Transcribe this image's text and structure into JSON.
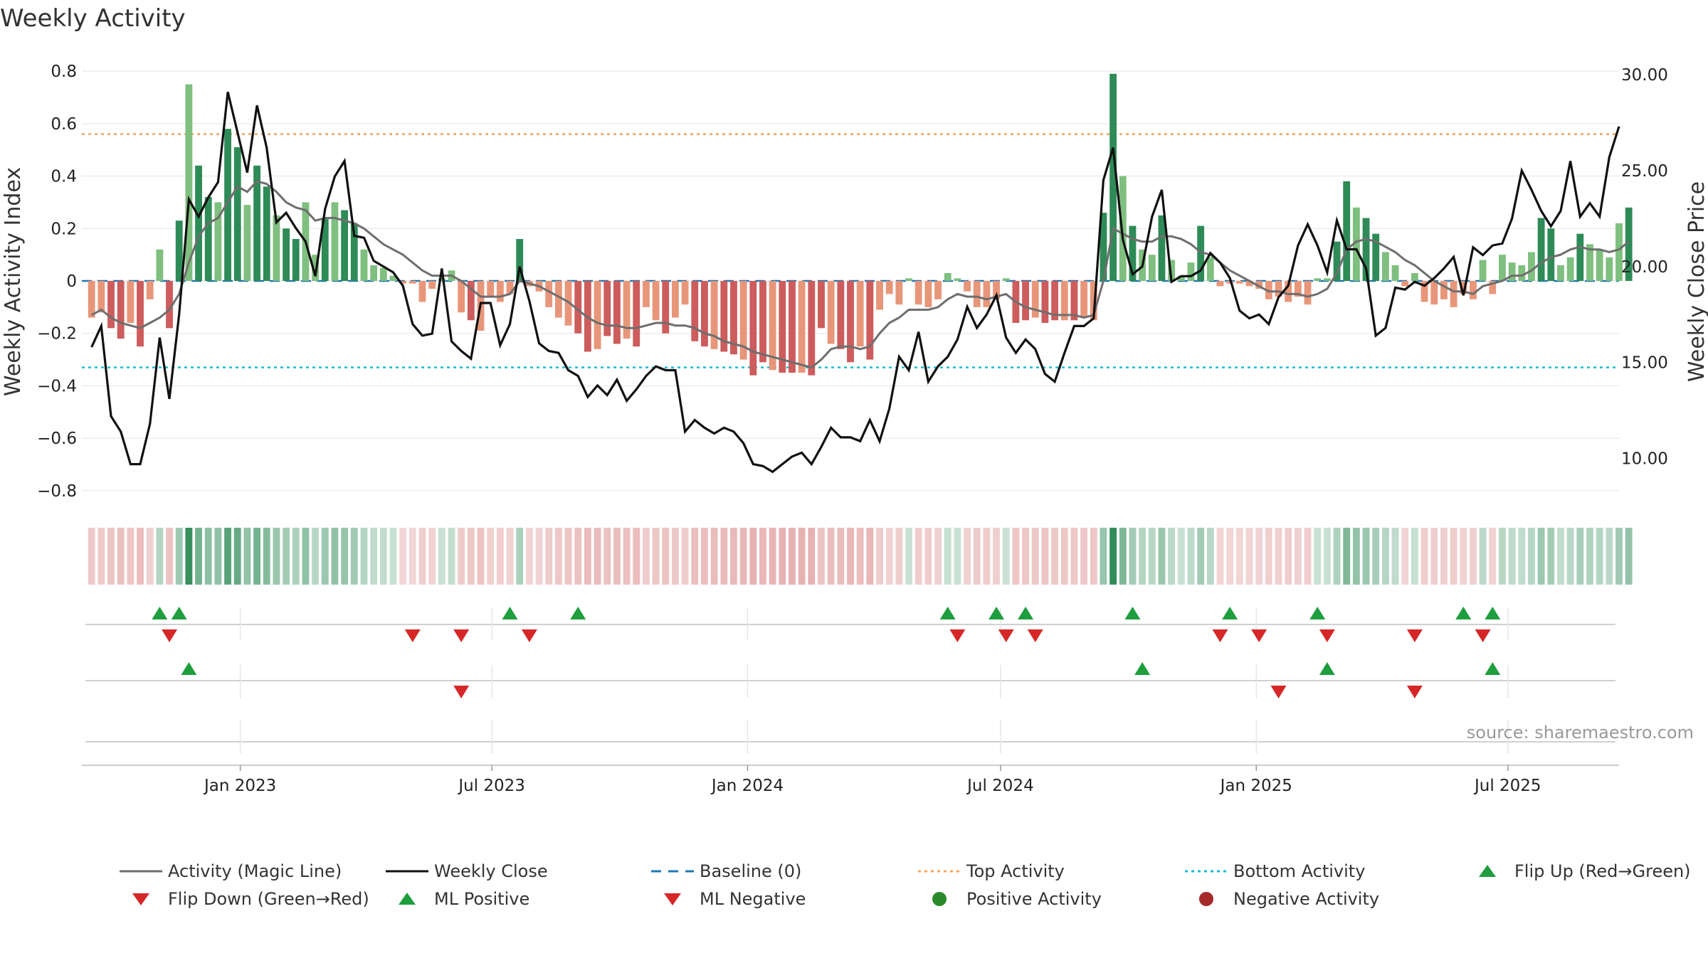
{
  "title": "Weekly Activity",
  "source": "source: sharemaestro.com",
  "colors": {
    "pos_strong": "#2e8b57",
    "pos_light": "#7fbf7f",
    "neg_strong": "#cd5c5c",
    "neg_light": "#e8967a",
    "magic_line": "#6e6e6e",
    "close_line": "#111111",
    "baseline": "#1f77b4",
    "top_line": "#f4a460",
    "bottom_line": "#17becf",
    "flip_up": "#1e9e3e",
    "flip_down": "#d62728"
  },
  "chart_data": {
    "type": "bar",
    "ylabel": "Weekly Activity Index",
    "y2label": "Weekly Close Price",
    "ylim": [
      -0.86,
      0.86
    ],
    "y2lim": [
      7.5,
      31.0
    ],
    "yticks": [
      -0.8,
      -0.6,
      -0.4,
      -0.2,
      0,
      0.2,
      0.4,
      0.6,
      0.8
    ],
    "yticklabels": [
      "−0.8",
      "−0.6",
      "−0.4",
      "−0.2",
      "0",
      "0.2",
      "0.4",
      "0.6",
      "0.8"
    ],
    "y2ticks": [
      10,
      15,
      20,
      25,
      30
    ],
    "y2ticklabels": [
      "10.00",
      "15.00",
      "20.00",
      "25.00",
      "30.00"
    ],
    "xlim": [
      "2022-09-09",
      "2025-09-19"
    ],
    "xticks": [
      "2023-01-01",
      "2023-07-01",
      "2024-01-01",
      "2024-07-01",
      "2025-01-01",
      "2025-07-01"
    ],
    "xticklabels": [
      "Jan 2023",
      "Jul 2023",
      "Jan 2024",
      "Jul 2024",
      "Jan 2025",
      "Jul 2025"
    ],
    "start_week": "2022-09-16",
    "activity": [
      -0.14,
      -0.12,
      -0.18,
      -0.22,
      -0.16,
      -0.25,
      -0.07,
      0.12,
      -0.18,
      0.23,
      0.75,
      0.44,
      0.32,
      0.3,
      0.58,
      0.51,
      0.29,
      0.44,
      0.36,
      0.25,
      0.2,
      0.16,
      0.3,
      0.1,
      0.24,
      0.3,
      0.27,
      0.22,
      0.12,
      0.06,
      0.05,
      0.02,
      -0.01,
      -0.01,
      -0.08,
      -0.03,
      0.01,
      0.04,
      -0.12,
      -0.15,
      -0.19,
      -0.06,
      -0.08,
      -0.05,
      0.16,
      -0.02,
      -0.04,
      -0.1,
      -0.14,
      -0.17,
      -0.2,
      -0.27,
      -0.26,
      -0.21,
      -0.24,
      -0.22,
      -0.25,
      -0.1,
      -0.15,
      -0.2,
      -0.14,
      -0.09,
      -0.23,
      -0.25,
      -0.26,
      -0.27,
      -0.28,
      -0.3,
      -0.36,
      -0.31,
      -0.34,
      -0.35,
      -0.35,
      -0.35,
      -0.36,
      -0.18,
      -0.24,
      -0.26,
      -0.31,
      -0.25,
      -0.3,
      -0.11,
      -0.05,
      -0.09,
      0.01,
      -0.09,
      -0.1,
      -0.07,
      0.03,
      0.01,
      -0.04,
      -0.1,
      -0.1,
      -0.07,
      0.01,
      -0.16,
      -0.15,
      -0.14,
      -0.16,
      -0.15,
      -0.15,
      -0.15,
      -0.14,
      -0.15,
      0.26,
      0.79,
      0.4,
      0.21,
      0.12,
      0.1,
      0.25,
      0.08,
      0.02,
      0.07,
      0.21,
      0.09,
      -0.02,
      -0.01,
      -0.01,
      -0.02,
      -0.03,
      -0.07,
      -0.06,
      -0.08,
      -0.06,
      -0.09,
      0.01,
      0.01,
      0.15,
      0.38,
      0.28,
      0.24,
      0.18,
      0.11,
      0.06,
      -0.02,
      0.03,
      -0.08,
      -0.09,
      -0.07,
      -0.1,
      -0.05,
      -0.07,
      0.08,
      -0.05,
      0.1,
      0.07,
      0.06,
      0.11,
      0.24,
      0.2,
      0.06,
      0.09,
      0.18,
      0.14,
      0.12,
      0.09,
      0.22,
      0.28
    ],
    "magic_line": [
      -0.13,
      -0.11,
      -0.14,
      -0.16,
      -0.17,
      -0.18,
      -0.16,
      -0.14,
      -0.11,
      -0.05,
      0.07,
      0.17,
      0.22,
      0.24,
      0.3,
      0.36,
      0.34,
      0.38,
      0.37,
      0.34,
      0.3,
      0.28,
      0.27,
      0.23,
      0.24,
      0.24,
      0.23,
      0.22,
      0.2,
      0.17,
      0.14,
      0.12,
      0.1,
      0.07,
      0.04,
      0.02,
      0.02,
      0.02,
      0.0,
      -0.03,
      -0.06,
      -0.06,
      -0.06,
      -0.05,
      0.0,
      -0.01,
      -0.02,
      -0.04,
      -0.06,
      -0.08,
      -0.11,
      -0.14,
      -0.16,
      -0.17,
      -0.17,
      -0.18,
      -0.18,
      -0.17,
      -0.16,
      -0.16,
      -0.17,
      -0.17,
      -0.18,
      -0.2,
      -0.21,
      -0.23,
      -0.24,
      -0.25,
      -0.27,
      -0.28,
      -0.29,
      -0.3,
      -0.31,
      -0.32,
      -0.33,
      -0.3,
      -0.26,
      -0.25,
      -0.25,
      -0.26,
      -0.25,
      -0.2,
      -0.16,
      -0.14,
      -0.11,
      -0.11,
      -0.11,
      -0.1,
      -0.07,
      -0.05,
      -0.06,
      -0.06,
      -0.07,
      -0.06,
      -0.05,
      -0.08,
      -0.1,
      -0.11,
      -0.12,
      -0.13,
      -0.13,
      -0.13,
      -0.14,
      -0.13,
      0.0,
      0.2,
      0.18,
      0.16,
      0.15,
      0.15,
      0.17,
      0.17,
      0.16,
      0.14,
      0.11,
      0.1,
      0.07,
      0.04,
      0.02,
      0.0,
      -0.02,
      -0.04,
      -0.04,
      -0.05,
      -0.05,
      -0.06,
      -0.05,
      -0.03,
      0.03,
      0.12,
      0.15,
      0.16,
      0.15,
      0.13,
      0.11,
      0.08,
      0.06,
      0.03,
      0.0,
      -0.02,
      -0.04,
      -0.04,
      -0.05,
      -0.02,
      -0.01,
      0.0,
      0.02,
      0.02,
      0.04,
      0.07,
      0.09,
      0.1,
      0.12,
      0.13,
      0.12,
      0.12,
      0.11,
      0.12,
      0.15
    ],
    "weekly_close": [
      15.8,
      16.9,
      12.2,
      11.4,
      9.7,
      9.7,
      11.8,
      16.3,
      13.1,
      17.5,
      23.5,
      22.6,
      23.6,
      24.4,
      29.1,
      27.0,
      24.9,
      28.4,
      26.2,
      22.3,
      22.8,
      22.0,
      21.3,
      19.5,
      23.0,
      24.7,
      25.5,
      21.6,
      21.5,
      20.3,
      20.0,
      19.7,
      19.0,
      17.0,
      16.4,
      16.5,
      19.9,
      16.1,
      15.6,
      15.2,
      18.1,
      18.1,
      15.9,
      17.0,
      20.0,
      18.2,
      16.0,
      15.6,
      15.5,
      14.6,
      14.3,
      13.2,
      13.8,
      13.3,
      14.1,
      13.0,
      13.6,
      14.3,
      14.8,
      14.6,
      14.6,
      11.4,
      12.0,
      11.6,
      11.3,
      11.6,
      11.4,
      10.8,
      9.7,
      9.6,
      9.3,
      9.7,
      10.1,
      10.3,
      9.7,
      10.6,
      11.6,
      11.1,
      11.1,
      10.9,
      12.0,
      10.9,
      12.6,
      15.3,
      14.6,
      16.6,
      14.0,
      14.8,
      15.3,
      16.2,
      17.9,
      16.8,
      17.5,
      18.5,
      16.3,
      15.5,
      16.2,
      15.7,
      14.4,
      14.0,
      15.5,
      16.9,
      16.9,
      17.3,
      24.5,
      26.2,
      21.4,
      19.6,
      20.0,
      22.6,
      24.0,
      19.2,
      19.5,
      19.5,
      19.8,
      20.7,
      20.2,
      19.4,
      17.7,
      17.3,
      17.5,
      17.0,
      18.4,
      19.0,
      21.1,
      22.2,
      21.1,
      19.7,
      22.4,
      20.9,
      20.9,
      19.9,
      16.4,
      16.8,
      18.9,
      18.8,
      19.2,
      19.0,
      19.4,
      19.9,
      20.5,
      18.5,
      21.0,
      20.6,
      21.1,
      21.2,
      22.5,
      25.0,
      24.0,
      22.9,
      22.1,
      22.9,
      25.5,
      22.6,
      23.3,
      22.6,
      25.7,
      27.3
    ],
    "top_activity": 0.56,
    "bottom_activity": -0.33,
    "flip_up_weeks": [
      7,
      9,
      43,
      50,
      88,
      93,
      96,
      107,
      117,
      126,
      141,
      144
    ],
    "flip_down_weeks": [
      8,
      33,
      38,
      45,
      89,
      94,
      97,
      116,
      120,
      127,
      136,
      143
    ],
    "ml_positive_weeks": [
      10,
      108,
      127,
      144
    ],
    "ml_negative_weeks": [
      38,
      122,
      136
    ],
    "legend": [
      "Activity (Magic Line)",
      "Weekly Close",
      "Baseline (0)",
      "Top Activity",
      "Bottom Activity",
      "Flip Up (Red→Green)",
      "Flip Down (Green→Red)",
      "ML Positive",
      "ML Negative",
      "Positive Activity",
      "Negative Activity"
    ]
  }
}
